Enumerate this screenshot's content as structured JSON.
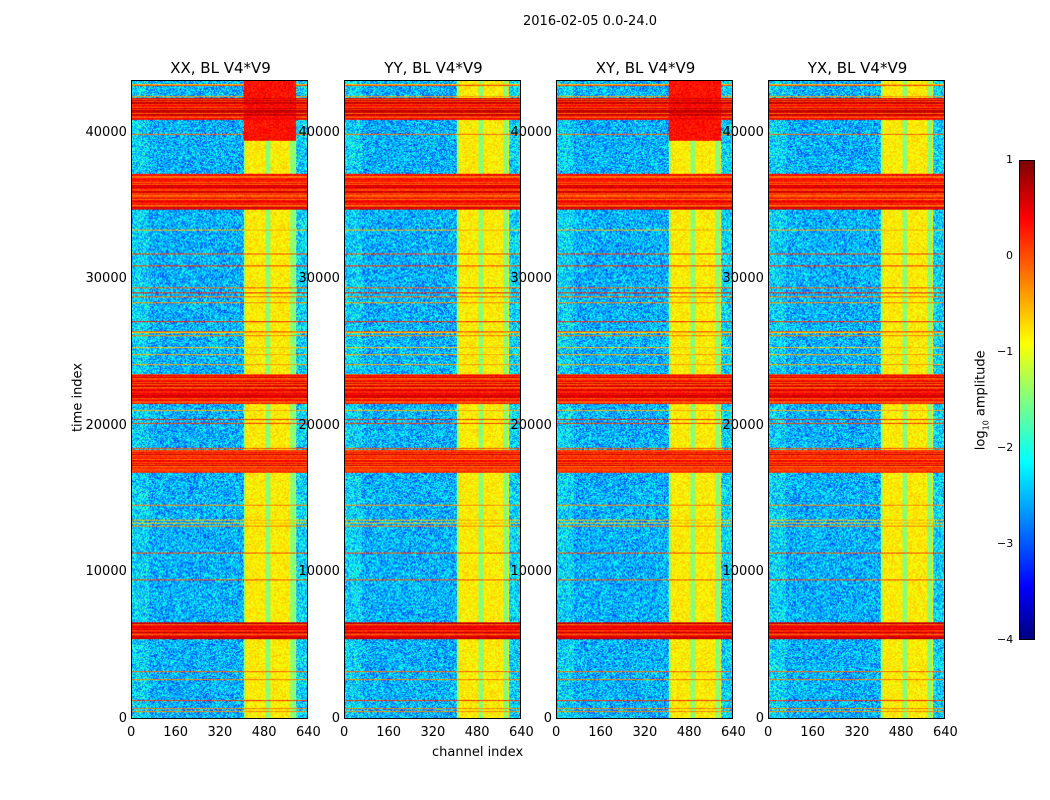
{
  "chart_data": {
    "type": "heatmap",
    "title": "2016-02-05 0.0-24.0",
    "xlabel": "channel index",
    "ylabel": "time index",
    "xlim": [
      0,
      640
    ],
    "ylim": [
      0,
      43600
    ],
    "xticks": [
      0,
      160,
      320,
      480,
      640
    ],
    "yticks": [
      0,
      10000,
      20000,
      30000,
      40000
    ],
    "panels": [
      {
        "title": "XX, BL V4*V9"
      },
      {
        "title": "YY, BL V4*V9"
      },
      {
        "title": "XY, BL V4*V9"
      },
      {
        "title": "YX, BL V4*V9"
      }
    ],
    "colorbar": {
      "label_prefix": "log",
      "label_sub": "10",
      "label_suffix": " amplitude",
      "range": [
        -4,
        1
      ],
      "ticks": [
        "1",
        "0",
        "−1",
        "−2",
        "−3",
        "−4"
      ],
      "colormap": "jet"
    },
    "features": {
      "background_level": -2.5,
      "bright_channel_range": [
        405,
        600
      ],
      "bright_channel_level": -0.8,
      "high_time_bands": [
        [
          5400,
          6600
        ],
        [
          16800,
          18400
        ],
        [
          21500,
          23500
        ],
        [
          34800,
          37300
        ],
        [
          41000,
          42500
        ]
      ]
    }
  }
}
